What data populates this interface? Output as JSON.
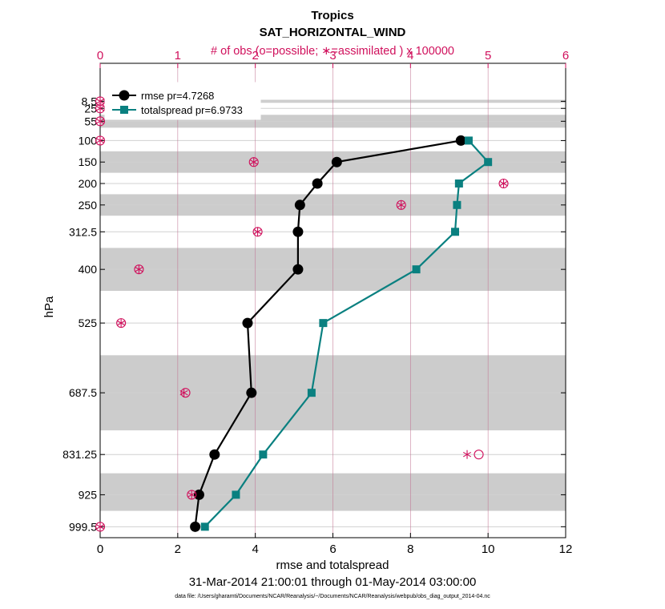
{
  "chart_data": {
    "type": "line",
    "title": "Tropics",
    "subtitle": "SAT_HORIZONTAL_WIND",
    "top_axis_label": "# of obs (o=possible; ∗=assimilated ) x 100000",
    "xlabel": "rmse and totalspread",
    "ylabel": "hPa",
    "date_range": "31-Mar-2014 21:00:01 through 01-May-2014 03:00:00",
    "footnote": "data file: /Users/gharamti/Documents/NCAR/Reanalysis/~/Documents/NCAR/Reanalysis/webpub/obs_diag_output_2014-04.nc",
    "xlim": [
      0,
      12
    ],
    "xticks": [
      "0",
      "2",
      "4",
      "6",
      "8",
      "10",
      "12"
    ],
    "top_xlim": [
      0,
      6
    ],
    "top_xticks": [
      "0",
      "1",
      "2",
      "3",
      "4",
      "5",
      "6"
    ],
    "levels": [
      8.5,
      25,
      55,
      100,
      150,
      200,
      250,
      312.5,
      400,
      525,
      687.5,
      831.25,
      925,
      999.5
    ],
    "level_labels": [
      "8.5",
      "25",
      "55",
      "100",
      "150",
      "200",
      "250",
      "312.5",
      "400",
      "525",
      "687.5",
      "831.25",
      "925",
      "999.5"
    ],
    "shaded_bands": [
      [
        5,
        12
      ],
      [
        40,
        70
      ],
      [
        125,
        175
      ],
      [
        225,
        275
      ],
      [
        350,
        450
      ],
      [
        600,
        775
      ],
      [
        875,
        962.5
      ]
    ],
    "series": [
      {
        "name": "rmse",
        "legend": "rmse pr=4.7268",
        "color": "#000000",
        "marker": "circle",
        "points": [
          {
            "x": 9.3,
            "p": 100
          },
          {
            "x": 6.1,
            "p": 150
          },
          {
            "x": 5.6,
            "p": 200
          },
          {
            "x": 5.15,
            "p": 250
          },
          {
            "x": 5.1,
            "p": 312.5
          },
          {
            "x": 5.1,
            "p": 400
          },
          {
            "x": 3.8,
            "p": 525
          },
          {
            "x": 3.9,
            "p": 687.5
          },
          {
            "x": 2.95,
            "p": 831.25
          },
          {
            "x": 2.55,
            "p": 925
          },
          {
            "x": 2.45,
            "p": 999.5
          }
        ]
      },
      {
        "name": "totalspread",
        "legend": "totalspread pr=6.9733",
        "color": "#0a8080",
        "marker": "square",
        "points": [
          {
            "x": 9.5,
            "p": 100
          },
          {
            "x": 10.0,
            "p": 150
          },
          {
            "x": 9.25,
            "p": 200
          },
          {
            "x": 9.2,
            "p": 250
          },
          {
            "x": 9.15,
            "p": 312.5
          },
          {
            "x": 8.15,
            "p": 400
          },
          {
            "x": 5.75,
            "p": 525
          },
          {
            "x": 5.45,
            "p": 687.5
          },
          {
            "x": 4.2,
            "p": 831.25
          },
          {
            "x": 3.5,
            "p": 925
          },
          {
            "x": 2.7,
            "p": 999.5
          }
        ]
      }
    ],
    "obs_counts": {
      "color": "#d0105c",
      "possible": [
        {
          "n": 0.0,
          "p": 8.5
        },
        {
          "n": 0.0,
          "p": 25
        },
        {
          "n": 0.0,
          "p": 55
        },
        {
          "n": 0.0,
          "p": 100
        },
        {
          "n": 1.98,
          "p": 150
        },
        {
          "n": 5.2,
          "p": 200
        },
        {
          "n": 3.88,
          "p": 250
        },
        {
          "n": 2.03,
          "p": 312.5
        },
        {
          "n": 0.5,
          "p": 400
        },
        {
          "n": 0.27,
          "p": 525
        },
        {
          "n": 1.1,
          "p": 687.5
        },
        {
          "n": 4.88,
          "p": 831.25
        },
        {
          "n": 1.18,
          "p": 925
        },
        {
          "n": 0.0,
          "p": 999.5
        }
      ],
      "assimilated": [
        {
          "n": 0.0,
          "p": 8.5
        },
        {
          "n": 0.0,
          "p": 25
        },
        {
          "n": 0.0,
          "p": 55
        },
        {
          "n": 0.0,
          "p": 100
        },
        {
          "n": 1.98,
          "p": 150
        },
        {
          "n": 5.2,
          "p": 200
        },
        {
          "n": 3.88,
          "p": 250
        },
        {
          "n": 2.03,
          "p": 312.5
        },
        {
          "n": 0.5,
          "p": 400
        },
        {
          "n": 0.27,
          "p": 525
        },
        {
          "n": 1.08,
          "p": 687.5
        },
        {
          "n": 4.73,
          "p": 831.25
        },
        {
          "n": 1.18,
          "p": 925
        },
        {
          "n": 0.0,
          "p": 999.5
        }
      ]
    }
  }
}
